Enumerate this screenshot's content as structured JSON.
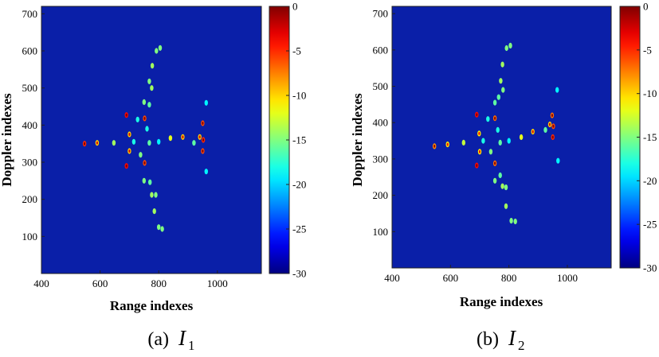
{
  "chart_data": [
    {
      "type": "heatmap",
      "panel": "a",
      "caption": {
        "prefix": "(a)",
        "symbol": "I",
        "subscript": "1"
      },
      "xlabel": "Range indexes",
      "ylabel": "Doppler indexes",
      "xlim": [
        400,
        1150
      ],
      "ylim": [
        0,
        720
      ],
      "xticks": [
        400,
        600,
        800,
        1000
      ],
      "yticks": [
        100,
        200,
        300,
        400,
        500,
        600,
        700
      ],
      "colorbar": {
        "range": [
          -30,
          0
        ],
        "ticks": [
          0,
          -5,
          -10,
          -15,
          -20,
          -25,
          -30
        ]
      },
      "points": [
        {
          "x": 547,
          "y": 350,
          "v": -5
        },
        {
          "x": 590,
          "y": 352,
          "v": -10
        },
        {
          "x": 647,
          "y": 352,
          "v": -14
        },
        {
          "x": 690,
          "y": 290,
          "v": -4
        },
        {
          "x": 690,
          "y": 427,
          "v": -4
        },
        {
          "x": 700,
          "y": 375,
          "v": -10
        },
        {
          "x": 700,
          "y": 330,
          "v": -10
        },
        {
          "x": 715,
          "y": 355,
          "v": -18
        },
        {
          "x": 728,
          "y": 415,
          "v": -18
        },
        {
          "x": 738,
          "y": 320,
          "v": -15
        },
        {
          "x": 752,
          "y": 418,
          "v": -6
        },
        {
          "x": 752,
          "y": 298,
          "v": -6
        },
        {
          "x": 760,
          "y": 390,
          "v": -18
        },
        {
          "x": 768,
          "y": 352,
          "v": -16
        },
        {
          "x": 750,
          "y": 462,
          "v": -15
        },
        {
          "x": 768,
          "y": 455,
          "v": -16
        },
        {
          "x": 776,
          "y": 500,
          "v": -14
        },
        {
          "x": 768,
          "y": 518,
          "v": -15
        },
        {
          "x": 778,
          "y": 560,
          "v": -14
        },
        {
          "x": 792,
          "y": 600,
          "v": -15
        },
        {
          "x": 805,
          "y": 608,
          "v": -15
        },
        {
          "x": 750,
          "y": 250,
          "v": -15
        },
        {
          "x": 770,
          "y": 246,
          "v": -16
        },
        {
          "x": 776,
          "y": 212,
          "v": -14
        },
        {
          "x": 790,
          "y": 212,
          "v": -15
        },
        {
          "x": 785,
          "y": 168,
          "v": -14
        },
        {
          "x": 800,
          "y": 125,
          "v": -15
        },
        {
          "x": 812,
          "y": 120,
          "v": -15
        },
        {
          "x": 800,
          "y": 355,
          "v": -19
        },
        {
          "x": 840,
          "y": 365,
          "v": -12
        },
        {
          "x": 882,
          "y": 368,
          "v": -10
        },
        {
          "x": 920,
          "y": 352,
          "v": -16
        },
        {
          "x": 940,
          "y": 368,
          "v": -10
        },
        {
          "x": 950,
          "y": 405,
          "v": -6
        },
        {
          "x": 952,
          "y": 360,
          "v": -5
        },
        {
          "x": 950,
          "y": 330,
          "v": -6
        },
        {
          "x": 962,
          "y": 460,
          "v": -19
        },
        {
          "x": 962,
          "y": 275,
          "v": -19
        }
      ]
    },
    {
      "type": "heatmap",
      "panel": "b",
      "caption": {
        "prefix": "(b)",
        "symbol": "I",
        "subscript": "2"
      },
      "xlabel": "Range indexes",
      "ylabel": "Doppler indexes",
      "xlim": [
        400,
        1150
      ],
      "ylim": [
        0,
        720
      ],
      "xticks": [
        400,
        600,
        800,
        1000
      ],
      "yticks": [
        100,
        200,
        300,
        400,
        500,
        600,
        700
      ],
      "colorbar": {
        "range": [
          -30,
          0
        ],
        "ticks": [
          0,
          -5,
          -10,
          -15,
          -20,
          -25,
          -30
        ]
      },
      "points": [
        {
          "x": 545,
          "y": 335,
          "v": -8
        },
        {
          "x": 590,
          "y": 340,
          "v": -11
        },
        {
          "x": 645,
          "y": 345,
          "v": -13
        },
        {
          "x": 690,
          "y": 282,
          "v": -4
        },
        {
          "x": 690,
          "y": 422,
          "v": -4
        },
        {
          "x": 698,
          "y": 370,
          "v": -11
        },
        {
          "x": 700,
          "y": 320,
          "v": -11
        },
        {
          "x": 712,
          "y": 350,
          "v": -18
        },
        {
          "x": 728,
          "y": 410,
          "v": -18
        },
        {
          "x": 738,
          "y": 320,
          "v": -15
        },
        {
          "x": 752,
          "y": 412,
          "v": -7
        },
        {
          "x": 752,
          "y": 288,
          "v": -7
        },
        {
          "x": 762,
          "y": 380,
          "v": -18
        },
        {
          "x": 770,
          "y": 345,
          "v": -16
        },
        {
          "x": 752,
          "y": 455,
          "v": -16
        },
        {
          "x": 765,
          "y": 470,
          "v": -16
        },
        {
          "x": 772,
          "y": 515,
          "v": -14
        },
        {
          "x": 780,
          "y": 490,
          "v": -15
        },
        {
          "x": 778,
          "y": 560,
          "v": -14
        },
        {
          "x": 792,
          "y": 605,
          "v": -15
        },
        {
          "x": 805,
          "y": 612,
          "v": -15
        },
        {
          "x": 752,
          "y": 240,
          "v": -15
        },
        {
          "x": 770,
          "y": 255,
          "v": -16
        },
        {
          "x": 778,
          "y": 225,
          "v": -14
        },
        {
          "x": 790,
          "y": 222,
          "v": -15
        },
        {
          "x": 790,
          "y": 170,
          "v": -14
        },
        {
          "x": 808,
          "y": 130,
          "v": -15
        },
        {
          "x": 822,
          "y": 128,
          "v": -15
        },
        {
          "x": 800,
          "y": 350,
          "v": -19
        },
        {
          "x": 842,
          "y": 360,
          "v": -12
        },
        {
          "x": 882,
          "y": 375,
          "v": -10
        },
        {
          "x": 925,
          "y": 380,
          "v": -16
        },
        {
          "x": 940,
          "y": 395,
          "v": -10
        },
        {
          "x": 950,
          "y": 360,
          "v": -5
        },
        {
          "x": 952,
          "y": 390,
          "v": -6
        },
        {
          "x": 948,
          "y": 420,
          "v": -7
        },
        {
          "x": 965,
          "y": 490,
          "v": -19
        },
        {
          "x": 968,
          "y": 295,
          "v": -19
        }
      ]
    }
  ]
}
